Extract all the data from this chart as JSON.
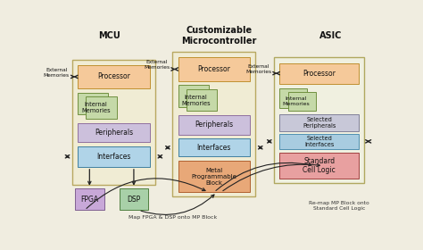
{
  "bg_color": "#f0ede0",
  "mcu_title": "MCU",
  "custom_title": "Customizable\nMicrocontroller",
  "asic_title": "ASIC",
  "colors": {
    "processor": "#f5c99a",
    "memory": "#c5d9a8",
    "peripherals": "#ccc0dc",
    "interfaces": "#b0d4e8",
    "selected_peripherals": "#c8c8d8",
    "selected_interfaces": "#a8cce0",
    "standard_cell": "#e8a0a0",
    "fpga": "#c8a8d8",
    "dsp": "#a8d0a8",
    "mp_block": "#e8a878",
    "container": "#f0ecd4",
    "container_border": "#b8a860",
    "asic_container": "#f0f0e0",
    "arrow": "#222222"
  },
  "note_map_fpga": "Map FPGA & DSP onto MP Block",
  "note_remap": "Re-map MP Block onto\nStandard Cell Logic"
}
